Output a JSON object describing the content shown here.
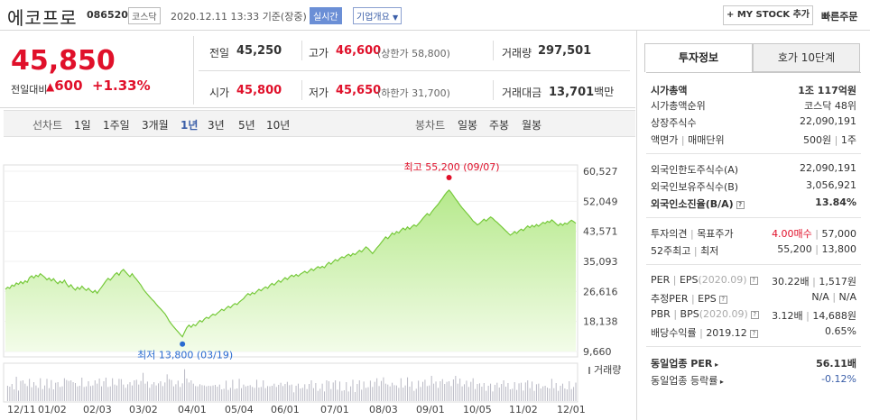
{
  "header": {
    "name": "에코프로",
    "code": "086520",
    "market": "코스닥",
    "datetime": "2020.12.11 13:33",
    "basis": "기준(장중)",
    "realtime": "실시간",
    "company_info": "기업개요",
    "mystock": "+ MY STOCK 추가",
    "quick_order": "빠른주문"
  },
  "price": {
    "current": "45,850",
    "change_label": "전일대비",
    "change_amount": "600",
    "change_pct": "+1.33%"
  },
  "summary": {
    "prev_label": "전일",
    "prev": "45,250",
    "high_label": "고가",
    "high": "46,600",
    "upper_limit": "(상한가 58,800)",
    "volume_label": "거래량",
    "volume": "297,501",
    "open_label": "시가",
    "open": "45,800",
    "low_label": "저가",
    "low": "45,650",
    "lower_limit": "(하한가 31,700)",
    "amount_label": "거래대금",
    "amount": "13,701",
    "amount_unit": "백만"
  },
  "periods": {
    "line_label": "선차트",
    "line_items": [
      "1일",
      "1주일",
      "3개월",
      "1년",
      "3년",
      "5년",
      "10년"
    ],
    "active": "1년",
    "candle_label": "봉차트",
    "candle_items": [
      "일봉",
      "주봉",
      "월봉"
    ]
  },
  "chart_data": {
    "type": "area",
    "y_ticks": [
      "60,527",
      "52,049",
      "43,571",
      "35,093",
      "26,616",
      "18,138",
      "9,660"
    ],
    "ylim": [
      9660,
      60527
    ],
    "x_ticks": [
      "12/11",
      "01/02",
      "02/03",
      "03/02",
      "04/01",
      "05/04",
      "06/01",
      "07/01",
      "08/03",
      "09/01",
      "10/05",
      "11/02",
      "12/01"
    ],
    "high_annotation": "최고 55,200 (09/07)",
    "low_annotation": "최저 13,800 (03/19)",
    "volume_label": "거래량",
    "series_color": "#8fd454",
    "values": [
      27200,
      27800,
      27500,
      28400,
      28100,
      29000,
      28600,
      29400,
      28800,
      29600,
      29200,
      30500,
      31000,
      30400,
      31200,
      30800,
      31600,
      31100,
      30600,
      29900,
      30400,
      29600,
      30200,
      29400,
      28800,
      29500,
      29000,
      29800,
      28700,
      27900,
      28500,
      27600,
      27000,
      27800,
      27200,
      28100,
      27400,
      26900,
      27500,
      26800,
      26300,
      26900,
      26100,
      27000,
      27800,
      28700,
      29600,
      30300,
      29800,
      30600,
      31400,
      31900,
      31200,
      32300,
      32800,
      32100,
      31400,
      30800,
      31600,
      30700,
      30000,
      29200,
      28400,
      27300,
      26500,
      25800,
      25100,
      24400,
      23800,
      23000,
      22300,
      21700,
      21000,
      20300,
      19300,
      18200,
      17400,
      16600,
      15900,
      15200,
      14500,
      13800,
      15200,
      16400,
      17100,
      16500,
      17300,
      16900,
      17700,
      18400,
      18000,
      18800,
      19300,
      19000,
      19700,
      20200,
      19900,
      20500,
      21000,
      21600,
      21200,
      21900,
      22400,
      22000,
      22700,
      23200,
      22900,
      23600,
      24100,
      24600,
      25400,
      26000,
      25600,
      26300,
      25900,
      26600,
      27200,
      26800,
      27400,
      27900,
      27500,
      28300,
      28900,
      28400,
      29100,
      29700,
      29200,
      29900,
      30500,
      30000,
      30700,
      31200,
      30800,
      31400,
      30900,
      31500,
      31900,
      32300,
      31800,
      32400,
      33000,
      32500,
      33100,
      33600,
      33200,
      33700,
      33300,
      34200,
      34800,
      34300,
      35000,
      35600,
      35200,
      35900,
      36400,
      36100,
      36700,
      37100,
      36600,
      37300,
      37000,
      37600,
      38200,
      37800,
      38500,
      39200,
      38700,
      38000,
      37300,
      38100,
      38900,
      39600,
      40400,
      41200,
      42000,
      41500,
      42300,
      43100,
      42700,
      43500,
      43100,
      43900,
      44500,
      44000,
      44800,
      44200,
      44900,
      45400,
      45000,
      45700,
      46400,
      47200,
      47900,
      48600,
      48100,
      49000,
      49800,
      50500,
      51200,
      52100,
      52900,
      53800,
      54600,
      55200,
      54500,
      53600,
      52700,
      51900,
      51000,
      50200,
      49500,
      48800,
      48100,
      47300,
      46500,
      46000,
      45400,
      45800,
      46400,
      47000,
      46500,
      47100,
      47600,
      47200,
      46600,
      46100,
      45500,
      44900,
      44300,
      43700,
      43100,
      42500,
      42900,
      43500,
      43000,
      43700,
      44200,
      43800,
      44500,
      45100,
      44600,
      45300,
      44800,
      45500,
      45000,
      45600,
      46100,
      45800,
      46400,
      46100,
      46800,
      46300,
      45700,
      45200,
      45800,
      45300,
      45900,
      45600,
      46200,
      46700,
      46300,
      45850
    ]
  },
  "panel": {
    "tab_active": "투자정보",
    "tab_other": "호가 10단계",
    "mktcap_label": "시가총액",
    "mktcap": "1조 117억원",
    "mktcap_rank_label": "시가총액순위",
    "mktcap_rank": "코스닥 48위",
    "shares_label": "상장주식수",
    "shares": "22,090,191",
    "par_label": "액면가",
    "unit_label": "매매단위",
    "par": "500원",
    "unit": "1주",
    "foreign_limit_label": "외국인한도주식수(A)",
    "foreign_limit": "22,090,191",
    "foreign_hold_label": "외국인보유주식수(B)",
    "foreign_hold": "3,056,921",
    "foreign_rate_label": "외국인소진율(B/A)",
    "foreign_rate": "13.84%",
    "opinion_label": "투자의견",
    "target_label": "목표주가",
    "opinion": "4.00매수",
    "target": "57,000",
    "w52_high_label": "52주최고",
    "w52_low_label": "최저",
    "w52_high": "55,200",
    "w52_low": "13,800",
    "per_label": "PER",
    "eps_label": "EPS",
    "eps_date": "(2020.09)",
    "per": "30.22배",
    "eps": "1,517원",
    "est_per_label": "추정PER",
    "est_eps_label": "EPS",
    "est_per": "N/A",
    "est_eps": "N/A",
    "pbr_label": "PBR",
    "bps_label": "BPS",
    "bps_date": "(2020.09)",
    "pbr": "3.12배",
    "bps": "14,688원",
    "div_label": "배당수익률",
    "div_date": "2019.12",
    "div": "0.65%",
    "sector_per_label": "동일업종 PER",
    "sector_per": "56.11배",
    "sector_chg_label": "동일업종 등락률",
    "sector_chg": "-0.12%"
  }
}
